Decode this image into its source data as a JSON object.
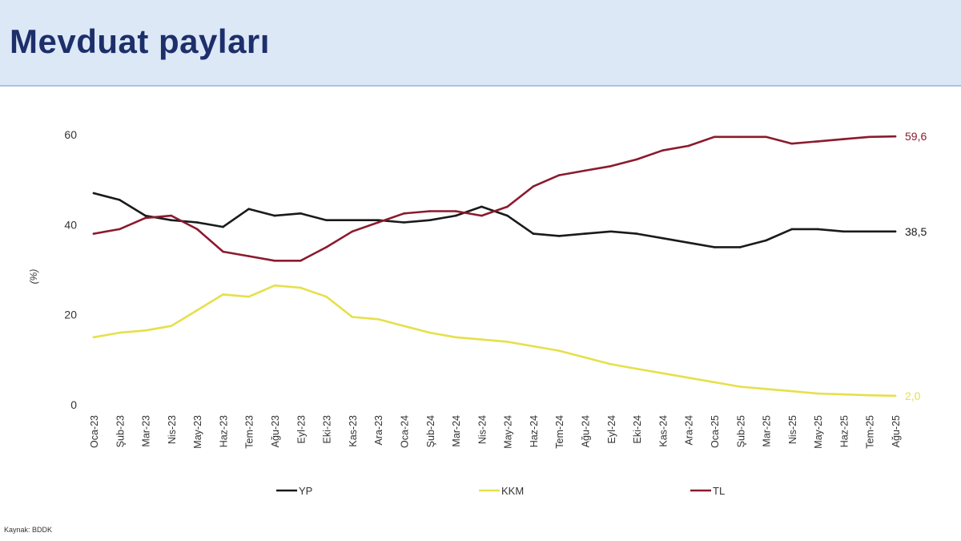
{
  "header": {
    "title": "Mevduat payları"
  },
  "source": "Kaynak: BDDK",
  "colors": {
    "header_bg": "#dde8f7",
    "title": "#1d2f6b",
    "YP": "#1a1a1a",
    "KKM": "#e6e04a",
    "TL": "#8b1a2e"
  },
  "chart_data": {
    "type": "line",
    "title": "",
    "ylabel": "(%)",
    "xlabel": "",
    "ylim": [
      0,
      60
    ],
    "yticks": [
      "0",
      "20",
      "40",
      "60"
    ],
    "legend_position": "bottom",
    "grid": false,
    "x_tick_labels": [
      "Oca-23",
      "Şub-23",
      "Mar-23",
      "Nis-23",
      "May-23",
      "Haz-23",
      "Tem-23",
      "Ağu-23",
      "Eyl-23",
      "Eki-23",
      "Kas-23",
      "Ara-23",
      "Oca-24",
      "Şub-24",
      "Mar-24",
      "Nis-24",
      "May-24",
      "Haz-24",
      "Tem-24",
      "Ağu-24",
      "Eyl-24",
      "Eki-24",
      "Kas-24",
      "Ara-24",
      "Oca-25",
      "Şub-25",
      "Mar-25",
      "Nis-25",
      "May-25",
      "Haz-25",
      "Tem-25",
      "Ağu-25"
    ],
    "series": [
      {
        "name": "YP",
        "color": "#1a1a1a",
        "end_label": "38,5",
        "values": [
          47.0,
          45.5,
          42.0,
          41.0,
          40.5,
          39.5,
          43.5,
          42.0,
          42.5,
          41.0,
          41.0,
          41.0,
          40.5,
          41.0,
          42.0,
          44.0,
          42.0,
          38.0,
          37.5,
          38.0,
          38.5,
          38.0,
          37.0,
          36.0,
          35.0,
          35.0,
          36.5,
          39.0,
          39.0,
          38.5,
          38.5,
          38.5
        ]
      },
      {
        "name": "KKM",
        "color": "#e6e04a",
        "end_label": "2,0",
        "values": [
          15.0,
          16.0,
          16.5,
          17.5,
          21.0,
          24.5,
          24.0,
          26.5,
          26.0,
          24.0,
          19.5,
          19.0,
          17.5,
          16.0,
          15.0,
          14.5,
          14.0,
          13.0,
          12.0,
          10.5,
          9.0,
          8.0,
          7.0,
          6.0,
          5.0,
          4.0,
          3.5,
          3.0,
          2.5,
          2.3,
          2.1,
          2.0
        ]
      },
      {
        "name": "TL",
        "color": "#8b1a2e",
        "end_label": "59,6",
        "values": [
          38.0,
          39.0,
          41.5,
          42.0,
          39.0,
          34.0,
          33.0,
          32.0,
          32.0,
          35.0,
          38.5,
          40.5,
          42.5,
          43.0,
          43.0,
          42.0,
          44.0,
          48.5,
          51.0,
          52.0,
          53.0,
          54.5,
          56.5,
          57.5,
          59.5,
          59.5,
          59.5,
          58.0,
          58.5,
          59.0,
          59.5,
          59.6
        ]
      }
    ]
  }
}
